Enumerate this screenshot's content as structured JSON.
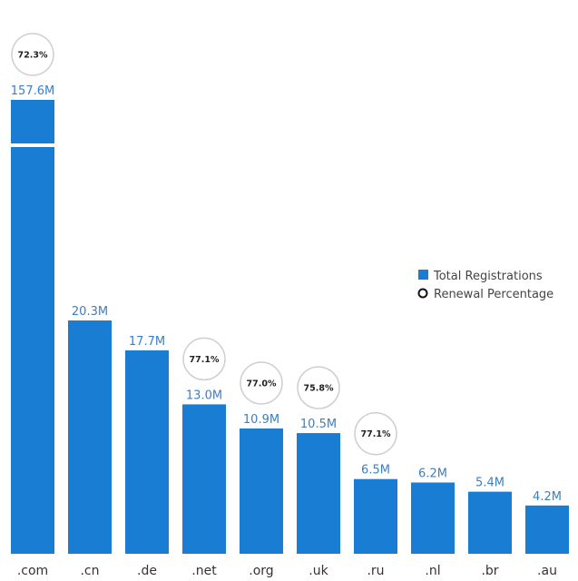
{
  "chart_data": {
    "type": "bar",
    "categories": [
      ".com",
      ".cn",
      ".de",
      ".net",
      ".org",
      ".uk",
      ".ru",
      ".nl",
      ".br",
      ".au"
    ],
    "series": [
      {
        "name": "Total Registrations",
        "values": [
          157.6,
          20.3,
          17.7,
          13.0,
          10.9,
          10.5,
          6.5,
          6.2,
          5.4,
          4.2
        ],
        "labels": [
          "157.6M",
          "20.3M",
          "17.7M",
          "13.0M",
          "10.9M",
          "10.5M",
          "6.5M",
          "6.2M",
          "5.4M",
          "4.2M"
        ],
        "color": "#1a7dd4"
      },
      {
        "name": "Renewal Percentage",
        "values": [
          72.3,
          null,
          null,
          77.1,
          77.0,
          75.8,
          77.1,
          null,
          null,
          null
        ],
        "labels": [
          "72.3%",
          null,
          null,
          "77.1%",
          "77.0%",
          "75.8%",
          "77.1%",
          null,
          null,
          null
        ]
      }
    ],
    "broken_axis_bar": ".com",
    "legend_position": "right",
    "grid": false,
    "title": "",
    "xlabel": "",
    "ylabel": ""
  }
}
